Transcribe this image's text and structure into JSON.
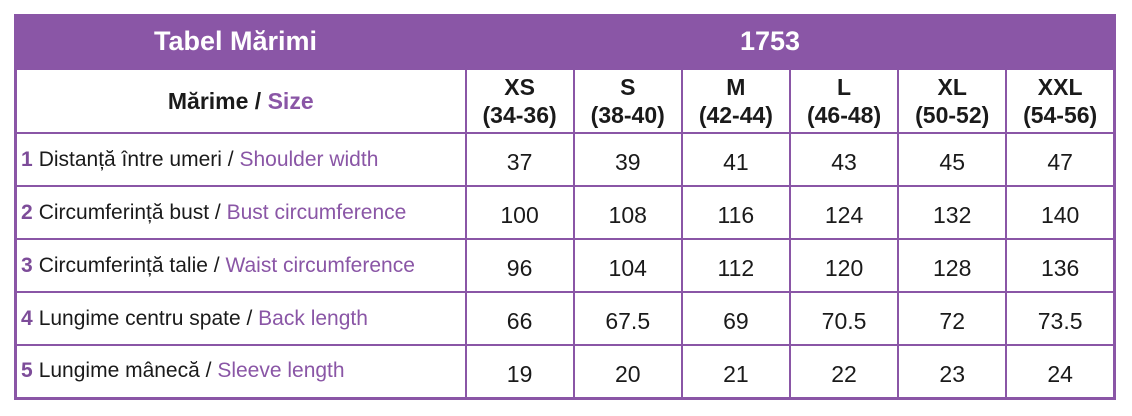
{
  "header": {
    "title": "Tabel Mărimi",
    "code": "1753"
  },
  "table": {
    "label_header": {
      "ro": "Mărime",
      "sep": " / ",
      "en": "Size"
    },
    "sizes": [
      {
        "name": "XS",
        "range": "(34-36)"
      },
      {
        "name": "S",
        "range": "(38-40)"
      },
      {
        "name": "M",
        "range": "(42-44)"
      },
      {
        "name": "L",
        "range": "(46-48)"
      },
      {
        "name": "XL",
        "range": "(50-52)"
      },
      {
        "name": "XXL",
        "range": "(54-56)"
      }
    ],
    "rows": [
      {
        "num": "1",
        "ro": "Distanță între umeri",
        "sep": " / ",
        "en": "Shoulder width",
        "values": [
          "37",
          "39",
          "41",
          "43",
          "45",
          "47"
        ]
      },
      {
        "num": "2",
        "ro": "Circumferință bust",
        "sep": " / ",
        "en": "Bust circumference",
        "values": [
          "100",
          "108",
          "116",
          "124",
          "132",
          "140"
        ]
      },
      {
        "num": "3",
        "ro": "Circumferință talie",
        "sep": " / ",
        "en": "Waist circumference",
        "values": [
          "96",
          "104",
          "112",
          "120",
          "128",
          "136"
        ]
      },
      {
        "num": "4",
        "ro": "Lungime centru spate",
        "sep": " / ",
        "en": "Back length",
        "values": [
          "66",
          "67.5",
          "69",
          "70.5",
          "72",
          "73.5"
        ]
      },
      {
        "num": "5",
        "ro": "Lungime mânecă",
        "sep": " / ",
        "en": "Sleeve length",
        "values": [
          "19",
          "20",
          "21",
          "22",
          "23",
          "24"
        ]
      }
    ]
  },
  "colors": {
    "accent": "#8a56a6"
  }
}
